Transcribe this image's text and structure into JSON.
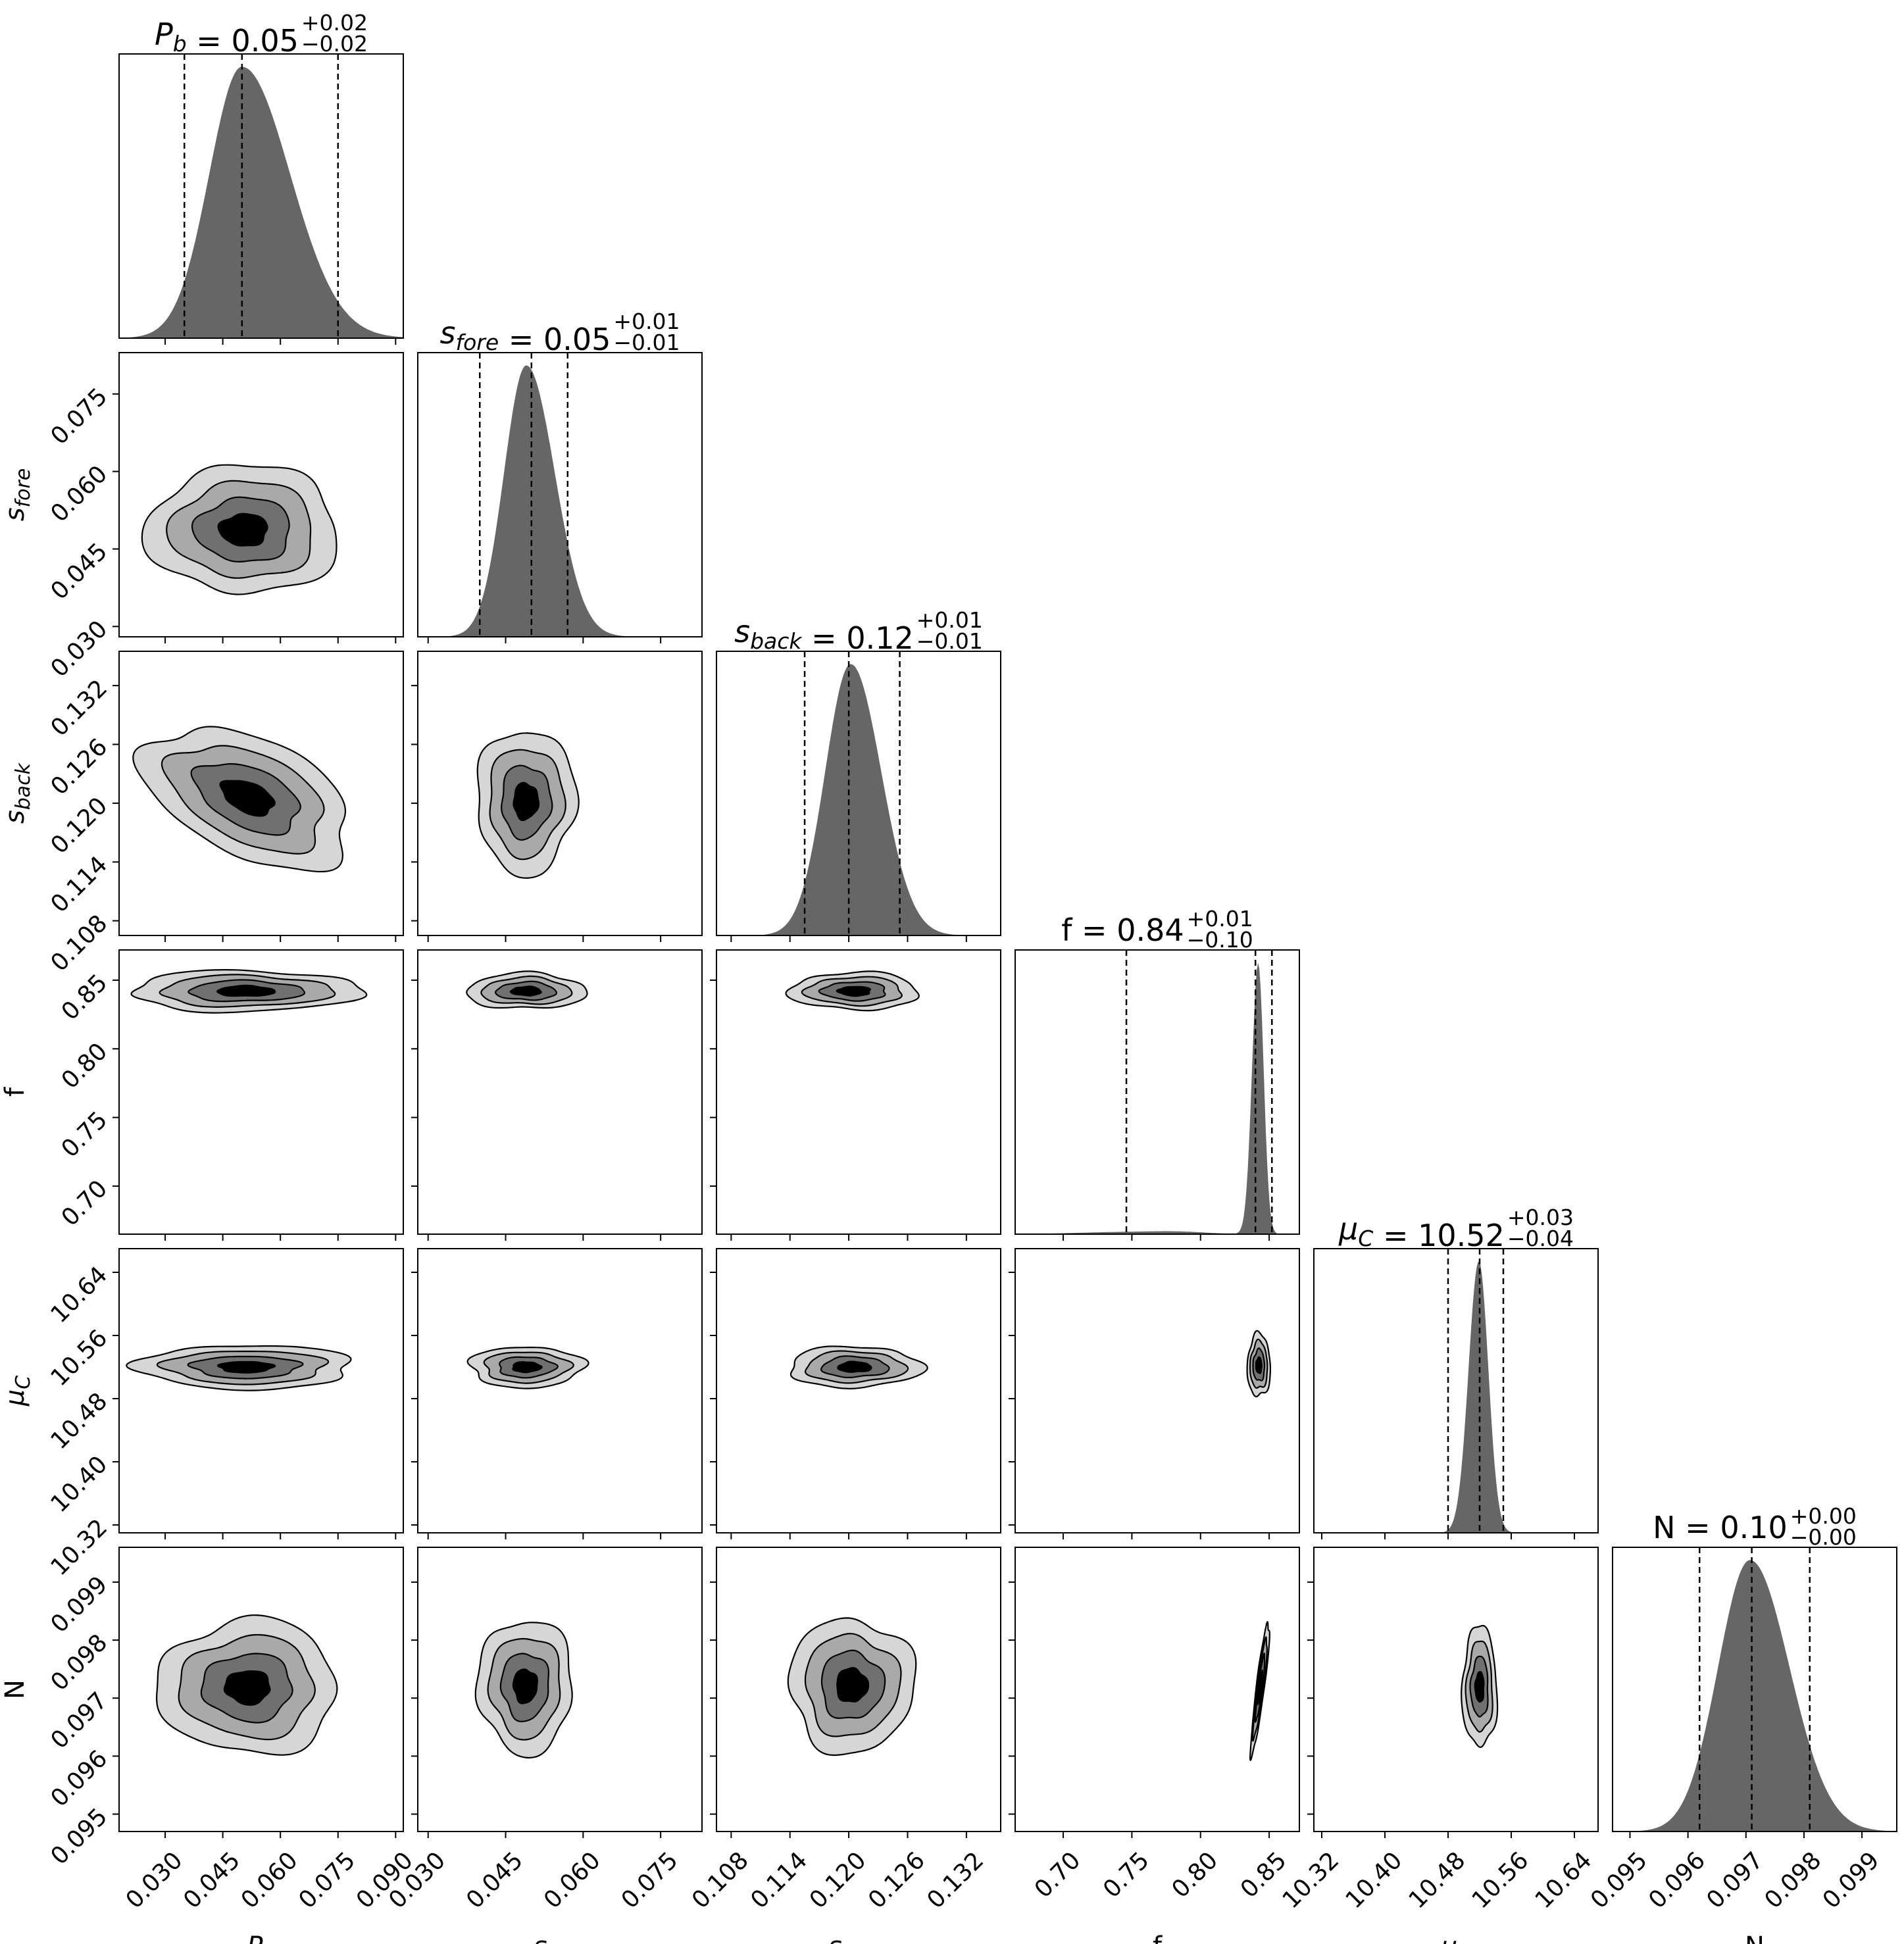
{
  "colors": {
    "histogram_fill": "#666666",
    "contour_levels": [
      "#d6d6d6",
      "#a9a9a9",
      "#707070",
      "#000000"
    ],
    "frame": "#000000"
  },
  "chart_data": {
    "type": "corner",
    "grid": false,
    "params": [
      {
        "id": "Pb",
        "label_base": "P",
        "label_sub": "b",
        "ticks": [
          0.03,
          0.045,
          0.06,
          0.075,
          0.09
        ],
        "tick_labels": [
          "0.030",
          "0.045",
          "0.060",
          "0.075",
          "0.090"
        ],
        "range": [
          0.018,
          0.092
        ],
        "median": 0.05,
        "q16": 0.035,
        "q84": 0.075,
        "title_name": "P",
        "title_name_sub": "b",
        "title_value": "0.05",
        "title_plus": "+0.02",
        "title_minus": "−0.02",
        "hist_shape": {
          "mode": 0.05,
          "sigma_left": 0.0085,
          "sigma_right": 0.0125
        }
      },
      {
        "id": "sfore",
        "label_base": "s",
        "label_sub": "fore",
        "ticks": [
          0.03,
          0.045,
          0.06,
          0.075
        ],
        "tick_labels": [
          "0.030",
          "0.045",
          "0.060",
          "0.075"
        ],
        "range": [
          0.028,
          0.083
        ],
        "median": 0.05,
        "q16": 0.04,
        "q84": 0.057,
        "title_name": "s",
        "title_name_sub": "fore",
        "title_value": "0.05",
        "title_plus": "+0.01",
        "title_minus": "−0.01",
        "hist_shape": {
          "mode": 0.049,
          "sigma_left": 0.0043,
          "sigma_right": 0.0055
        }
      },
      {
        "id": "sback",
        "label_base": "s",
        "label_sub": "back",
        "ticks": [
          0.108,
          0.114,
          0.12,
          0.126,
          0.132
        ],
        "tick_labels": [
          "0.108",
          "0.114",
          "0.120",
          "0.126",
          "0.132"
        ],
        "range": [
          0.1065,
          0.1355
        ],
        "median": 0.12,
        "q16": 0.1155,
        "q84": 0.1252,
        "title_name": "s",
        "title_name_sub": "back",
        "title_value": "0.12",
        "title_plus": "+0.01",
        "title_minus": "−0.01",
        "hist_shape": {
          "mode": 0.1202,
          "sigma_left": 0.0026,
          "sigma_right": 0.0031
        }
      },
      {
        "id": "f",
        "label_base": "f",
        "label_sub": "",
        "ticks": [
          0.7,
          0.75,
          0.8,
          0.85
        ],
        "tick_labels": [
          "0.70",
          "0.75",
          "0.80",
          "0.85"
        ],
        "range": [
          0.665,
          0.872
        ],
        "median": 0.84,
        "q16": 0.746,
        "q84": 0.852,
        "title_name": "f",
        "title_name_sub": "",
        "title_value": "0.84",
        "title_plus": "+0.01",
        "title_minus": "−0.10",
        "hist_shape": {
          "mode": 0.842,
          "sigma_left": 0.0045,
          "sigma_right": 0.004
        }
      },
      {
        "id": "muC",
        "label_base": "μ",
        "label_sub": "C",
        "ticks": [
          10.32,
          10.4,
          10.48,
          10.56,
          10.64
        ],
        "tick_labels": [
          "10.32",
          "10.40",
          "10.48",
          "10.56",
          "10.64"
        ],
        "range": [
          10.31,
          10.67
        ],
        "median": 10.52,
        "q16": 10.48,
        "q84": 10.55,
        "title_name": "μ",
        "title_name_sub": "C",
        "title_value": "10.52",
        "title_plus": "+0.03",
        "title_minus": "−0.04",
        "hist_shape": {
          "mode": 10.519,
          "sigma_left": 0.013,
          "sigma_right": 0.012
        }
      },
      {
        "id": "N",
        "label_base": "N",
        "label_sub": "",
        "ticks": [
          0.095,
          0.096,
          0.097,
          0.098,
          0.099
        ],
        "tick_labels": [
          "0.095",
          "0.096",
          "0.097",
          "0.098",
          "0.099"
        ],
        "range": [
          0.0947,
          0.0996
        ],
        "median": 0.0971,
        "q16": 0.0962,
        "q84": 0.0981,
        "title_name": "N",
        "title_name_sub": "",
        "title_value": "0.10",
        "title_plus": "+0.00",
        "title_minus": "−0.00",
        "hist_shape": {
          "mode": 0.09707,
          "sigma_left": 0.00055,
          "sigma_right": 0.00068
        }
      }
    ],
    "pairs": [
      {
        "x": "Pb",
        "y": "sfore",
        "cx": 0.0505,
        "cy": 0.0487,
        "sx": 0.0125,
        "sy": 0.0062,
        "rho": 0.0
      },
      {
        "x": "Pb",
        "y": "sback",
        "cx": 0.0515,
        "cy": 0.1206,
        "sx": 0.0135,
        "sy": 0.0036,
        "rho": -0.45
      },
      {
        "x": "sfore",
        "y": "sback",
        "cx": 0.0489,
        "cy": 0.1202,
        "sx": 0.0048,
        "sy": 0.0037,
        "rho": 0.0
      },
      {
        "x": "Pb",
        "y": "f",
        "cx": 0.051,
        "cy": 0.842,
        "sx": 0.015,
        "sy": 0.0075,
        "rho": 0.0
      },
      {
        "x": "sfore",
        "y": "f",
        "cx": 0.049,
        "cy": 0.842,
        "sx": 0.0058,
        "sy": 0.0065,
        "rho": 0.0
      },
      {
        "x": "sback",
        "y": "f",
        "cx": 0.1206,
        "cy": 0.842,
        "sx": 0.0033,
        "sy": 0.0068,
        "rho": 0.0
      },
      {
        "x": "Pb",
        "y": "muC",
        "cx": 0.051,
        "cy": 10.52,
        "sx": 0.014,
        "sy": 0.014,
        "rho": 0.0
      },
      {
        "x": "sfore",
        "y": "muC",
        "cx": 0.049,
        "cy": 10.52,
        "sx": 0.0055,
        "sy": 0.013,
        "rho": 0.0
      },
      {
        "x": "sback",
        "y": "muC",
        "cx": 0.1206,
        "cy": 10.52,
        "sx": 0.0034,
        "sy": 0.013,
        "rho": 0.0
      },
      {
        "x": "f",
        "y": "muC",
        "cx": 0.8425,
        "cy": 10.522,
        "sx": 0.0042,
        "sy": 0.02,
        "rho": 0.0
      },
      {
        "x": "Pb",
        "y": "N",
        "cx": 0.0515,
        "cy": 0.09719,
        "sx": 0.0117,
        "sy": 0.00058,
        "rho": 0.0
      },
      {
        "x": "sfore",
        "y": "N",
        "cx": 0.0488,
        "cy": 0.09721,
        "sx": 0.0046,
        "sy": 0.00058,
        "rho": 0.0
      },
      {
        "x": "sback",
        "y": "N",
        "cx": 0.1203,
        "cy": 0.09722,
        "sx": 0.0032,
        "sy": 0.00058,
        "rho": 0.0
      },
      {
        "x": "f",
        "y": "N",
        "cx": 0.8435,
        "cy": 0.09718,
        "sx": 0.0034,
        "sy": 0.00057,
        "rho": 0.9
      },
      {
        "x": "muC",
        "y": "N",
        "cx": 10.52,
        "cy": 0.09719,
        "sx": 0.011,
        "sy": 0.00052,
        "rho": 0.0
      }
    ]
  }
}
